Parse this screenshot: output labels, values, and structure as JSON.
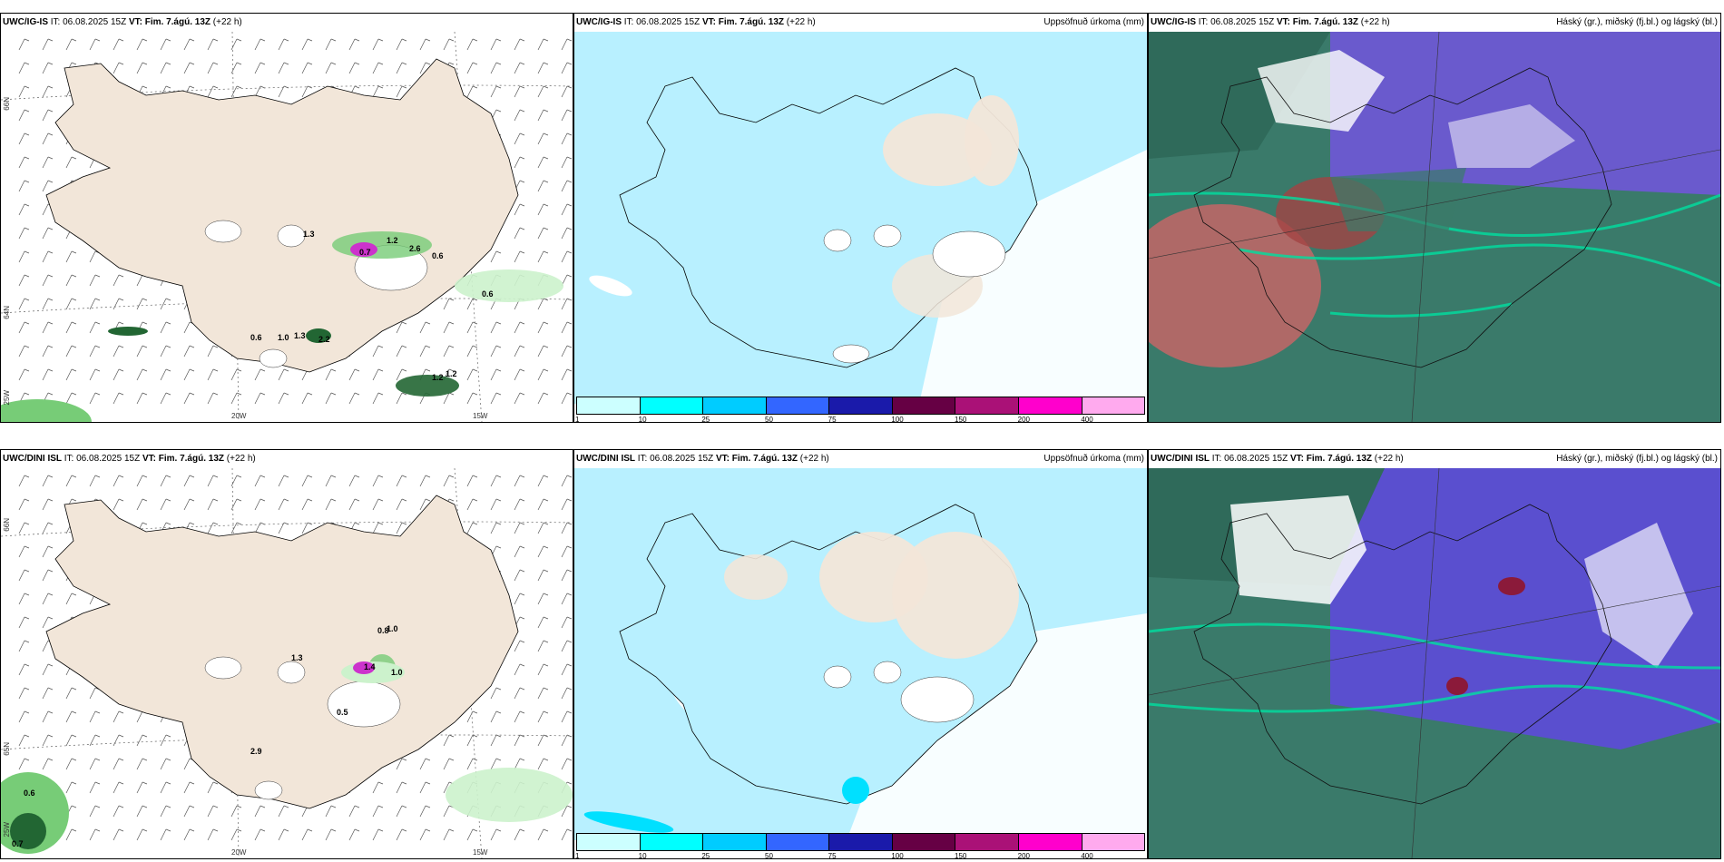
{
  "panels": {
    "p1": {
      "model": "UWC/IG-IS",
      "it": "IT: 06.08.2025 15Z",
      "vt_label": "VT:",
      "vt_value": "Fim. 7.ágú. 13Z",
      "offset": "(+22 h)",
      "right_title": ""
    },
    "p2": {
      "model": "UWC/IG-IS",
      "it": "IT: 06.08.2025 15Z",
      "vt_label": "VT:",
      "vt_value": "Fim. 7.ágú. 13Z",
      "offset": "(+22 h)",
      "right_title": "Uppsöfnuð úrkoma (mm)"
    },
    "p3": {
      "model": "UWC/IG-IS",
      "it": "IT: 06.08.2025 15Z",
      "vt_label": "VT:",
      "vt_value": "Fim. 7.ágú. 13Z",
      "offset": "(+22 h)",
      "right_title": "Háský (gr.), miðský (fj.bl.) og lágský (bl.)"
    },
    "p4": {
      "model": "UWC/DINI ISL",
      "it": "IT: 06.08.2025 15Z",
      "vt_label": "VT:",
      "vt_value": "Fim. 7.ágú. 13Z",
      "offset": "(+22 h)",
      "right_title": ""
    },
    "p5": {
      "model": "UWC/DINI ISL",
      "it": "IT: 06.08.2025 15Z",
      "vt_label": "VT:",
      "vt_value": "Fim. 7.ágú. 13Z",
      "offset": "(+22 h)",
      "right_title": "Uppsöfnuð úrkoma (mm)"
    },
    "p6": {
      "model": "UWC/DINI ISL",
      "it": "IT: 06.08.2025 15Z",
      "vt_label": "VT:",
      "vt_value": "Fim. 7.ágú. 13Z",
      "offset": "(+22 h)",
      "right_title": "Háský (gr.), miðský (fj.bl.) og lágský (bl.)"
    }
  },
  "coords": {
    "lon20": "20W",
    "lon15": "15W",
    "lat66": "66N",
    "lat64": "64N",
    "lat65": "65N",
    "lat25w": "25W"
  },
  "colorbar": {
    "colors": [
      "#ccffff",
      "#00ffff",
      "#00ccff",
      "#3366ff",
      "#1a1aaa",
      "#660044",
      "#aa1177",
      "#ff00cc",
      "#ffaaee"
    ],
    "labels": [
      "1",
      "10",
      "25",
      "50",
      "75",
      "100",
      "150",
      "200",
      "400"
    ]
  },
  "precip_labels_p1": [
    {
      "t": "1.3"
    },
    {
      "t": "0.7"
    },
    {
      "t": "1.2"
    },
    {
      "t": "2.6"
    },
    {
      "t": "0.6"
    },
    {
      "t": "0.6"
    },
    {
      "t": "0.6"
    },
    {
      "t": "1.0"
    },
    {
      "t": "1.3"
    },
    {
      "t": "2.2"
    },
    {
      "t": "1.2"
    },
    {
      "t": "1.2"
    }
  ],
  "precip_labels_p4": [
    {
      "t": "1.3"
    },
    {
      "t": "0.8"
    },
    {
      "t": "1.0"
    },
    {
      "t": "1.4"
    },
    {
      "t": "1.0"
    },
    {
      "t": "0.5"
    },
    {
      "t": "2.9"
    },
    {
      "t": "0.6"
    },
    {
      "t": "0.7"
    }
  ],
  "colors": {
    "land": "#f2e6d9",
    "sea": "#ffffff",
    "precip_light": "#b8f0ff",
    "precip_cyan": "#00e0ff",
    "green_light": "#ccf2cc",
    "green_mid": "#77cc77",
    "green_dark": "#226633",
    "magenta": "#cc33cc",
    "cloud_high": "#3a7a6a",
    "cloud_mid": "#6a5acd",
    "cloud_low": "#00cc88"
  }
}
